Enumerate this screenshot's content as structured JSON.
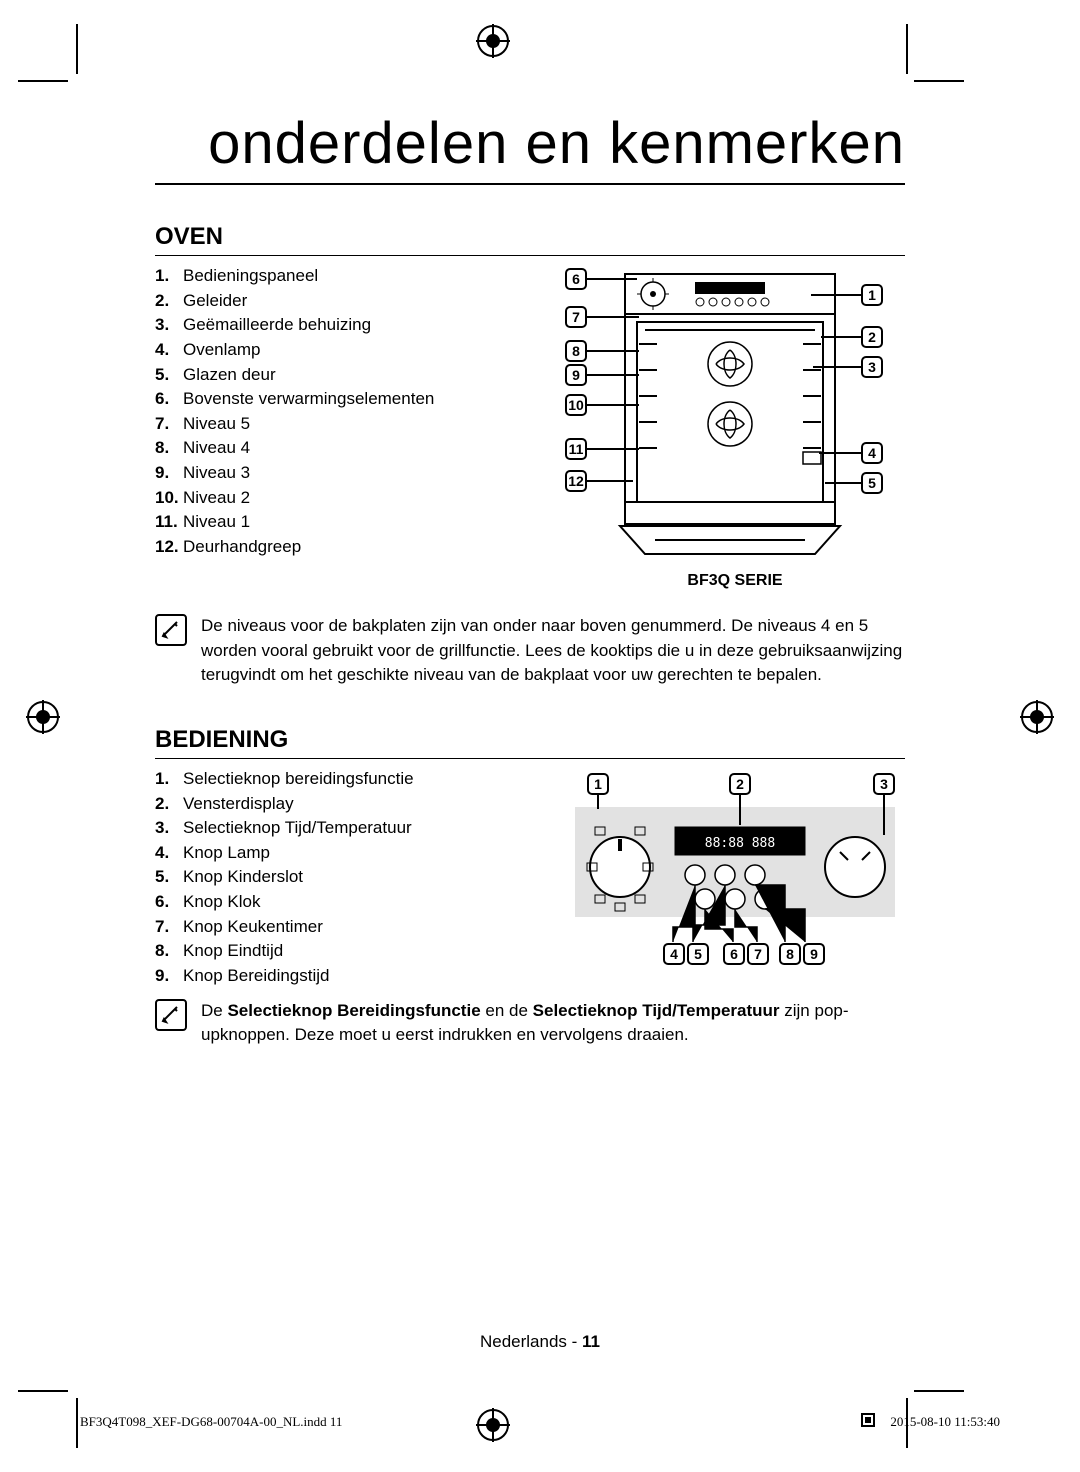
{
  "title": "onderdelen en kenmerken",
  "sections": {
    "oven": {
      "heading": "OVEN",
      "items": [
        "Bedieningspaneel",
        "Geleider",
        "Geëmailleerde behuizing",
        "Ovenlamp",
        "Glazen deur",
        "Bovenste verwarmingselementen",
        "Niveau 5",
        "Niveau 4",
        "Niveau 3",
        "Niveau 2",
        "Niveau 1",
        "Deurhandgreep"
      ],
      "caption": "BF3Q SERIE",
      "note": "De niveaus voor de bakplaten zijn van onder naar boven genummerd. De niveaus 4 en 5 worden vooral gebruikt voor de grillfunctie. Lees de kooktips die u in deze gebruiksaanwijzing terugvindt om het geschikte niveau van de bakplaat voor uw gerechten te bepalen."
    },
    "bediening": {
      "heading": "BEDIENING",
      "items": [
        "Selectieknop bereidingsfunctie",
        "Vensterdisplay",
        "Selectieknop Tijd/Temperatuur",
        "Knop Lamp",
        "Knop Kinderslot",
        "Knop Klok",
        "Knop Keukentimer",
        "Knop Eindtijd",
        "Knop Bereidingstijd"
      ],
      "note_pre": "De ",
      "note_b1": "Selectieknop Bereidingsfunctie",
      "note_mid": " en de ",
      "note_b2": "Selectieknop Tijd/Temperatuur",
      "note_post": " zijn pop-upknoppen. Deze moet u eerst indrukken en vervolgens draaien."
    }
  },
  "footer": {
    "page_lang": "Nederlands - ",
    "page_num": "11",
    "doc_id": "BF3Q4T098_XEF-DG68-00704A-00_NL.indd   11",
    "datetime": "2015-08-10   11:53:40"
  },
  "display_text": "88:88    888"
}
